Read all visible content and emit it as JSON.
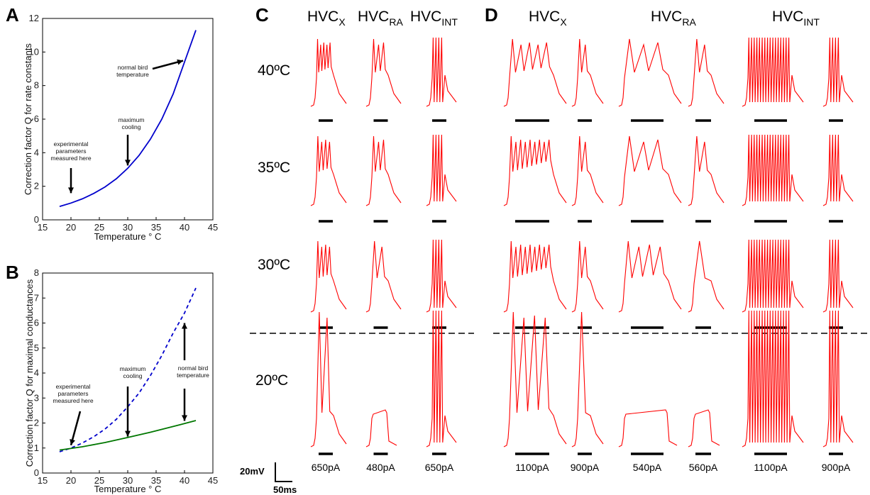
{
  "panels": {
    "A": {
      "letter": "A"
    },
    "B": {
      "letter": "B"
    },
    "C": {
      "letter": "C",
      "headers": [
        {
          "main": "HVC",
          "sub": "X"
        },
        {
          "main": "HVC",
          "sub": "RA"
        },
        {
          "main": "HVC",
          "sub": "INT"
        }
      ]
    },
    "D": {
      "letter": "D",
      "headers": [
        {
          "main": "HVC",
          "sub": "X"
        },
        {
          "main": "HVC",
          "sub": "RA"
        },
        {
          "main": "HVC",
          "sub": "INT"
        }
      ]
    }
  },
  "chart_data": [
    {
      "type": "line",
      "panel": "A",
      "xlabel": "Temperature ° C",
      "ylabel": "Correction factor Q for rate constants",
      "xlim": [
        15,
        45
      ],
      "ylim": [
        0,
        12
      ],
      "xticks": [
        15,
        20,
        25,
        30,
        35,
        40,
        45
      ],
      "yticks": [
        0,
        2,
        4,
        6,
        8,
        10,
        12
      ],
      "series": [
        {
          "color": "#0000cc",
          "style": "solid",
          "x": [
            18,
            20,
            22,
            24,
            26,
            28,
            30,
            32,
            34,
            36,
            38,
            40,
            42
          ],
          "y": [
            0.8,
            1.0,
            1.25,
            1.57,
            1.96,
            2.45,
            3.07,
            3.84,
            4.81,
            6.0,
            7.5,
            9.4,
            11.3
          ]
        }
      ],
      "annotations": [
        {
          "lines": [
            "experimental",
            "parameters",
            "measured here"
          ],
          "x": 20,
          "y": 1.0
        },
        {
          "lines": [
            "maximum",
            "cooling"
          ],
          "x": 30,
          "y": 3.07
        },
        {
          "lines": [
            "normal bird",
            "temperature"
          ],
          "x": 40,
          "y": 9.4
        }
      ]
    },
    {
      "type": "line",
      "panel": "B",
      "xlabel": "Temperature ° C",
      "ylabel": "Correction factor Q for maximal conductances",
      "xlim": [
        15,
        45
      ],
      "ylim": [
        0,
        8
      ],
      "xticks": [
        15,
        20,
        25,
        30,
        35,
        40,
        45
      ],
      "yticks": [
        0,
        1,
        2,
        3,
        4,
        5,
        6,
        7,
        8
      ],
      "series": [
        {
          "color": "#0000cc",
          "style": "dashed",
          "x": [
            18,
            20,
            22,
            24,
            26,
            28,
            30,
            32,
            34,
            36,
            38,
            40,
            42
          ],
          "y": [
            0.85,
            1.0,
            1.2,
            1.45,
            1.76,
            2.15,
            2.65,
            3.2,
            3.9,
            4.7,
            5.6,
            6.4,
            7.4
          ]
        },
        {
          "color": "#007700",
          "style": "solid",
          "x": [
            18,
            22,
            26,
            30,
            34,
            38,
            42
          ],
          "y": [
            0.92,
            1.05,
            1.22,
            1.42,
            1.63,
            1.86,
            2.1
          ]
        }
      ],
      "annotations": [
        {
          "lines": [
            "experimental",
            "parameters",
            "measured here"
          ],
          "x": 20,
          "y": 1.0
        },
        {
          "lines": [
            "maximum",
            "cooling"
          ],
          "x": 30,
          "y": 1.4
        },
        {
          "lines": [
            "normal bird",
            "temperature"
          ],
          "x": 40,
          "y": 2.0
        }
      ]
    },
    {
      "type": "line",
      "panel": "C-D",
      "description_temperatures": [
        "40ºC",
        "35ºC",
        "30ºC",
        "20ºC"
      ],
      "columns": [
        {
          "cell": "HVC_X",
          "current": "650pA",
          "spikes": {
            "40": 5,
            "35": 4,
            "30": 4,
            "20": 2
          }
        },
        {
          "cell": "HVC_RA",
          "current": "480pA",
          "spikes": {
            "40": 3,
            "35": 3,
            "30": 2,
            "20": 0
          }
        },
        {
          "cell": "HVC_INT",
          "current": "650pA",
          "spikes": {
            "40": 4,
            "35": 4,
            "30": 4,
            "20": 4
          }
        },
        {
          "cell": "HVC_X",
          "current": "1100pA",
          "spikes": {
            "40": 5,
            "35": 9,
            "30": 9,
            "20": 4
          }
        },
        {
          "cell": "HVC_X",
          "current": "900pA",
          "spikes": {
            "40": 2,
            "35": 2,
            "30": 2,
            "20": 1
          }
        },
        {
          "cell": "HVC_RA",
          "current": "540pA",
          "spikes": {
            "40": 3,
            "35": 3,
            "30": 4,
            "20": 0
          }
        },
        {
          "cell": "HVC_RA",
          "current": "560pA",
          "spikes": {
            "40": 2,
            "35": 2,
            "30": 1,
            "20": 0
          }
        },
        {
          "cell": "HVC_INT",
          "current": "1100pA",
          "spikes": {
            "40": 16,
            "35": 16,
            "30": 16,
            "20": 16
          }
        },
        {
          "cell": "HVC_INT",
          "current": "900pA",
          "spikes": {
            "40": 4,
            "35": 4,
            "30": 4,
            "20": 4
          }
        }
      ],
      "scale_bar": {
        "voltage": "20mV",
        "time": "50ms"
      },
      "trace_color": "#ff0000"
    }
  ]
}
